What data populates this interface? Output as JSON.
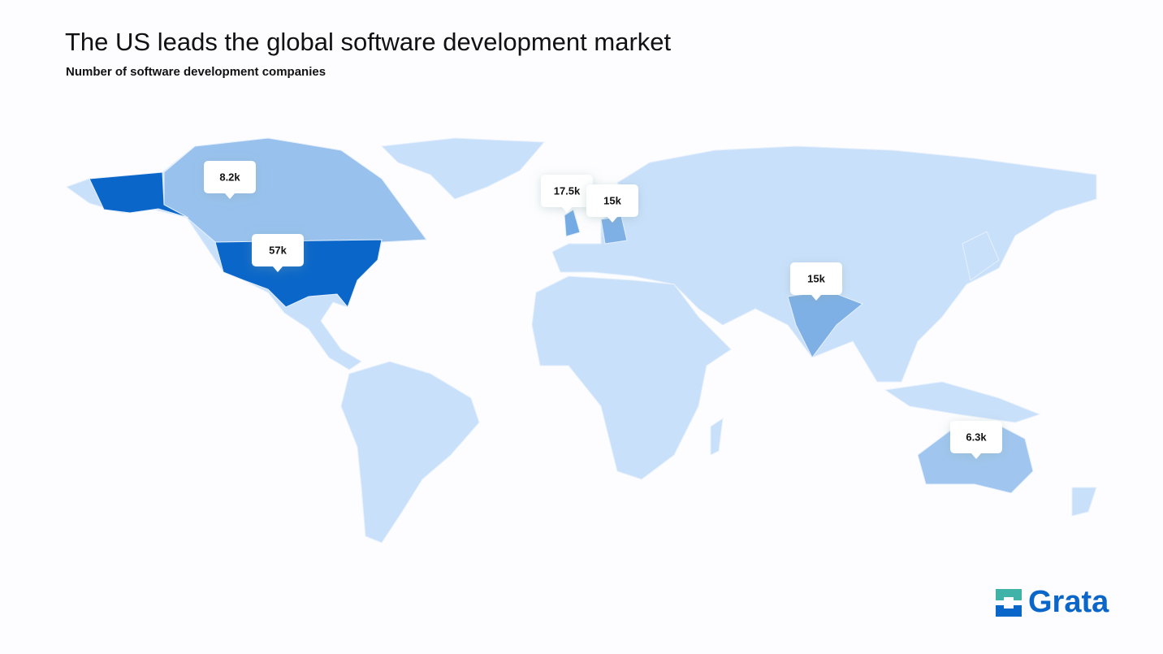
{
  "chart_data": {
    "type": "choropleth",
    "title": "The US leads the global software development market",
    "subtitle": "Number of software development companies",
    "values": [
      8200,
      57000,
      17500,
      15000,
      15000,
      6300
    ],
    "value_labels": [
      "8.2k",
      "57k",
      "17.5k",
      "15k",
      "15k",
      "6.3k"
    ],
    "color": "#0a66c8"
  },
  "logo": "Grata"
}
